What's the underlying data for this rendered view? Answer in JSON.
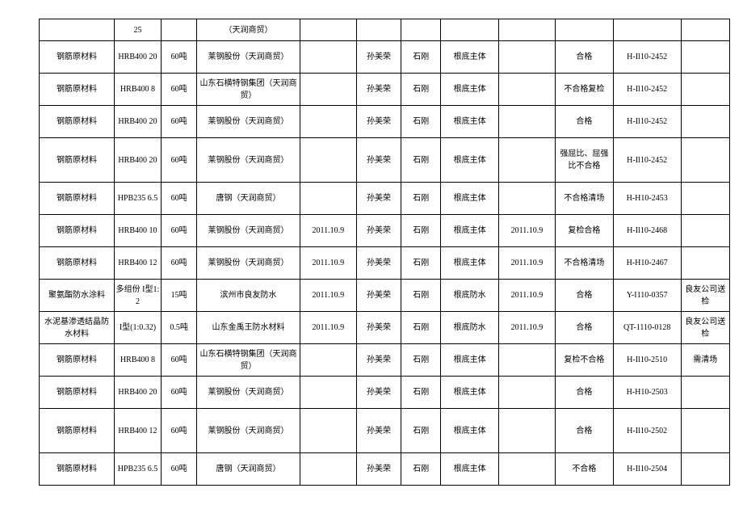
{
  "table": {
    "row_heights": [
      "h0",
      "h1",
      "h1",
      "h1",
      "h2",
      "h1",
      "h1",
      "h1",
      "h1",
      "h1",
      "h1",
      "h1",
      "h2",
      "h1"
    ],
    "rows": [
      [
        "",
        "25",
        "",
        "（天润商贸）",
        "",
        "",
        "",
        "",
        "",
        "",
        "",
        ""
      ],
      [
        "钢筋原材料",
        "HRB400 20",
        "60吨",
        "莱钢股份（天润商贸）",
        "",
        "孙美荣",
        "石刚",
        "根底主体",
        "",
        "合格",
        "H-Il10-2452",
        ""
      ],
      [
        "钢筋原材料",
        "HRB400 8",
        "60吨",
        "山东石横特钢集团（天润商贸）",
        "",
        "孙美荣",
        "石刚",
        "根底主体",
        "",
        "不合格复检",
        "H-Il10-2452",
        ""
      ],
      [
        "钢筋原材料",
        "HRB400 20",
        "60吨",
        "莱钢股份（天润商贸）",
        "",
        "孙美荣",
        "石刚",
        "根底主体",
        "",
        "合格",
        "H-Il10-2452",
        ""
      ],
      [
        "钢筋原材料",
        "HRB400 20",
        "60吨",
        "莱钢股份（天润商贸）",
        "",
        "孙美荣",
        "石刚",
        "根底主体",
        "",
        "强屈比、屈强比不合格",
        "H-Il10-2452",
        ""
      ],
      [
        "钢筋原材料",
        "HPB235 6.5",
        "60吨",
        "唐钢（天润商贸）",
        "",
        "孙美荣",
        "石刚",
        "根底主体",
        "",
        "不合格清场",
        "H-H10-2453",
        ""
      ],
      [
        "钢筋原材料",
        "HRB400 10",
        "60吨",
        "莱钢股份（天润商贸）",
        "2011.10.9",
        "孙美荣",
        "石刚",
        "根底主体",
        "2011.10.9",
        "复检合格",
        "H-Il10-2468",
        ""
      ],
      [
        "钢筋原材料",
        "HRB400 12",
        "60吨",
        "莱钢股份（天润商贸）",
        "2011.10.9",
        "孙美荣",
        "石刚",
        "根底主体",
        "2011.10.9",
        "不合格清场",
        "H-H10-2467",
        ""
      ],
      [
        "聚氨酯防水涂料",
        "多组份 I型1:2",
        "15吨",
        "滨州市良友防水",
        "2011.10.9",
        "孙美荣",
        "石刚",
        "根底防水",
        "2011.10.9",
        "合格",
        "Y-I110-0357",
        "良友公司送检"
      ],
      [
        "水泥基渗透结晶防水材料",
        "I型(1:0.32)",
        "0.5吨",
        "山东金禹王防水材料",
        "2011.10.9",
        "孙美荣",
        "石刚",
        "根底防水",
        "2011.10.9",
        "合格",
        "QT-1110-0128",
        "良友公司送检"
      ],
      [
        "钢筋原材料",
        "HRB400 8",
        "60吨",
        "山东石横特钢集团（天润商贸）",
        "",
        "孙美荣",
        "石刚",
        "根底主体",
        "",
        "复检不合格",
        "H-Il10-2510",
        "需清场"
      ],
      [
        "钢筋原材料",
        "HRB400 20",
        "60吨",
        "莱钢股份（天润商贸）",
        "",
        "孙美荣",
        "石刚",
        "根底主体",
        "",
        "合格",
        "H-H10-2503",
        ""
      ],
      [
        "钢筋原材料",
        "HRB400 12",
        "60吨",
        "莱钢股份（天润商贸）",
        "",
        "孙美荣",
        "石刚",
        "根底主体",
        "",
        "合格",
        "H-Il10-2502",
        ""
      ],
      [
        "钢筋原材料",
        "HPB235 6.5",
        "60吨",
        "唐钢（天润商贸）",
        "",
        "孙美荣",
        "石刚",
        "根底主体",
        "",
        "不合格",
        "H-Il10-2504",
        ""
      ]
    ]
  }
}
